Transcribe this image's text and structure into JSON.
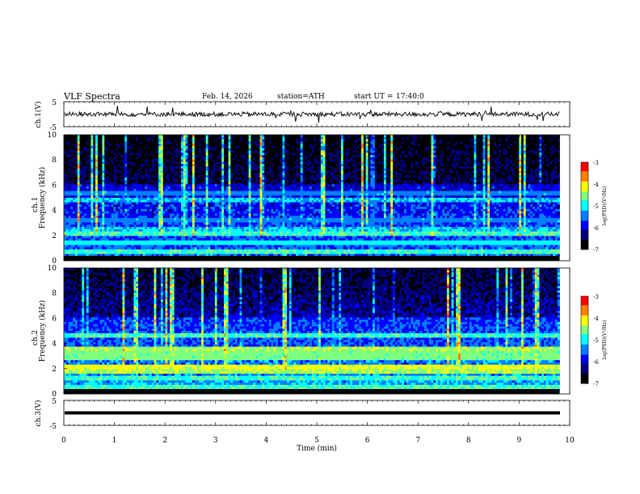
{
  "header": {
    "title": "VLF Spectra",
    "date": "Feb. 14, 2026",
    "station": "station=ATH",
    "start_label": "start UT =",
    "start_time": "17:40:0"
  },
  "chart_data": [
    {
      "type": "line",
      "panel": "ch1-waveform",
      "ylabel": "ch.1(V)",
      "ylim": [
        -5,
        5
      ],
      "yticks": [
        "5",
        "-5"
      ],
      "xlim": [
        0,
        10
      ],
      "series": [
        {
          "description_only": true,
          "baseline": 0,
          "noise_amplitude": 0.9,
          "spike_amplitude": 3.5,
          "x_end": 9.8
        }
      ]
    },
    {
      "type": "heatmap",
      "panel": "ch1-spectrogram",
      "ylabel": "ch.1 Frequency (kHz)",
      "ylim": [
        0,
        10
      ],
      "yticks": [
        "0",
        "2",
        "4",
        "6",
        "8",
        "10"
      ],
      "xlim": [
        0,
        9.8
      ],
      "colorbar": {
        "label": "log(PSD)(V²/Hz)",
        "range": [
          -7,
          -3
        ],
        "ticks": [
          "-3",
          "-4",
          "-5",
          "-6",
          "-7"
        ]
      },
      "bands_kHz": [
        {
          "f": 0.2,
          "level": 0.55
        },
        {
          "f": 0.8,
          "level": 0.55
        },
        {
          "f": 1.5,
          "level": 0.5
        },
        {
          "f": 2.2,
          "level": 0.55
        },
        {
          "f": 2.5,
          "level": 0.45
        },
        {
          "f": 3.3,
          "level": 0.4
        },
        {
          "f": 4.9,
          "level": 0.45
        },
        {
          "f": 5.3,
          "level": 0.4
        }
      ]
    },
    {
      "type": "heatmap",
      "panel": "ch2-spectrogram",
      "ylabel": "ch.2 Frequency (kHz)",
      "ylim": [
        0,
        10
      ],
      "yticks": [
        "0",
        "2",
        "4",
        "6",
        "8",
        "10"
      ],
      "xlim": [
        0,
        9.8
      ],
      "colorbar": {
        "label": "log(PSD)(V²/Hz)",
        "range": [
          -7,
          -3
        ],
        "ticks": [
          "-3",
          "-4",
          "-5",
          "-6",
          "-7"
        ]
      },
      "bands_kHz": [
        {
          "f": 0.6,
          "level": 0.55
        },
        {
          "f": 1.2,
          "level": 0.55
        },
        {
          "f": 1.8,
          "level": 0.65
        },
        {
          "f": 2.1,
          "level": 0.7
        },
        {
          "f": 2.8,
          "level": 0.6
        },
        {
          "f": 3.2,
          "level": 0.6
        },
        {
          "f": 3.6,
          "level": 0.65
        },
        {
          "f": 4.6,
          "level": 0.55
        }
      ]
    },
    {
      "type": "line",
      "panel": "ch3-waveform",
      "ylabel": "ch.3(V)",
      "ylim": [
        -5,
        5
      ],
      "yticks": [
        "5",
        "-5"
      ],
      "xlim": [
        0,
        10
      ],
      "series": [
        {
          "description_only": true,
          "baseline": 0,
          "thickness_units": 0.4,
          "x_end": 9.8
        }
      ]
    }
  ],
  "xaxis": {
    "label": "Time (min)",
    "ticks": [
      "0",
      "1",
      "2",
      "3",
      "4",
      "5",
      "6",
      "7",
      "8",
      "9",
      "10"
    ],
    "range": [
      0,
      10
    ]
  },
  "colors": {
    "colormap": [
      "#000000",
      "#00007f",
      "#0000ff",
      "#007fff",
      "#00ffff",
      "#7fff7f",
      "#ffff00",
      "#ff7f00",
      "#ff0000",
      "#ffffff"
    ]
  }
}
